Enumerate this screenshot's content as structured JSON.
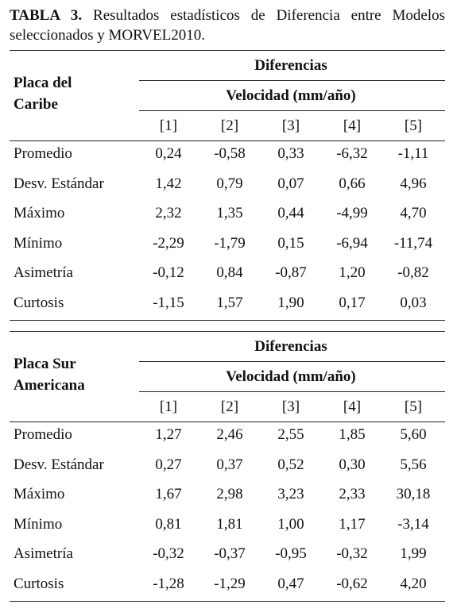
{
  "caption": {
    "label": "TABLA 3.",
    "text": "Resultados estadísticos de Diferencia entre Modelos seleccionados y MORVEL2010."
  },
  "tables": [
    {
      "plate": "Placa del Caribe",
      "group": "Diferencias",
      "subgroup": "Velocidad (mm/año)",
      "columns": [
        "[1]",
        "[2]",
        "[3]",
        "[4]",
        "[5]"
      ],
      "rows": [
        {
          "label": "Promedio",
          "values": [
            "0,24",
            "-0,58",
            "0,33",
            "-6,32",
            "-1,11"
          ]
        },
        {
          "label": "Desv. Estándar",
          "values": [
            "1,42",
            "0,79",
            "0,07",
            "0,66",
            "4,96"
          ]
        },
        {
          "label": "Máximo",
          "values": [
            "2,32",
            "1,35",
            "0,44",
            "-4,99",
            "4,70"
          ]
        },
        {
          "label": "Mínimo",
          "values": [
            "-2,29",
            "-1,79",
            "0,15",
            "-6,94",
            "-11,74"
          ]
        },
        {
          "label": "Asimetría",
          "values": [
            "-0,12",
            "0,84",
            "-0,87",
            "1,20",
            "-0,82"
          ]
        },
        {
          "label": "Curtosis",
          "values": [
            "-1,15",
            "1,57",
            "1,90",
            "0,17",
            "0,03"
          ]
        }
      ]
    },
    {
      "plate": "Placa Sur Americana",
      "group": "Diferencias",
      "subgroup": "Velocidad (mm/año)",
      "columns": [
        "[1]",
        "[2]",
        "[3]",
        "[4]",
        "[5]"
      ],
      "rows": [
        {
          "label": "Promedio",
          "values": [
            "1,27",
            "2,46",
            "2,55",
            "1,85",
            "5,60"
          ]
        },
        {
          "label": "Desv. Estándar",
          "values": [
            "0,27",
            "0,37",
            "0,52",
            "0,30",
            "5,56"
          ]
        },
        {
          "label": "Máximo",
          "values": [
            "1,67",
            "2,98",
            "3,23",
            "2,33",
            "30,18"
          ]
        },
        {
          "label": "Mínimo",
          "values": [
            "0,81",
            "1,81",
            "1,00",
            "1,17",
            "-3,14"
          ]
        },
        {
          "label": "Asimetría",
          "values": [
            "-0,32",
            "-0,37",
            "-0,95",
            "-0,32",
            "1,99"
          ]
        },
        {
          "label": "Curtosis",
          "values": [
            "-1,28",
            "-1,29",
            "0,47",
            "-0,62",
            "4,20"
          ]
        }
      ]
    }
  ]
}
